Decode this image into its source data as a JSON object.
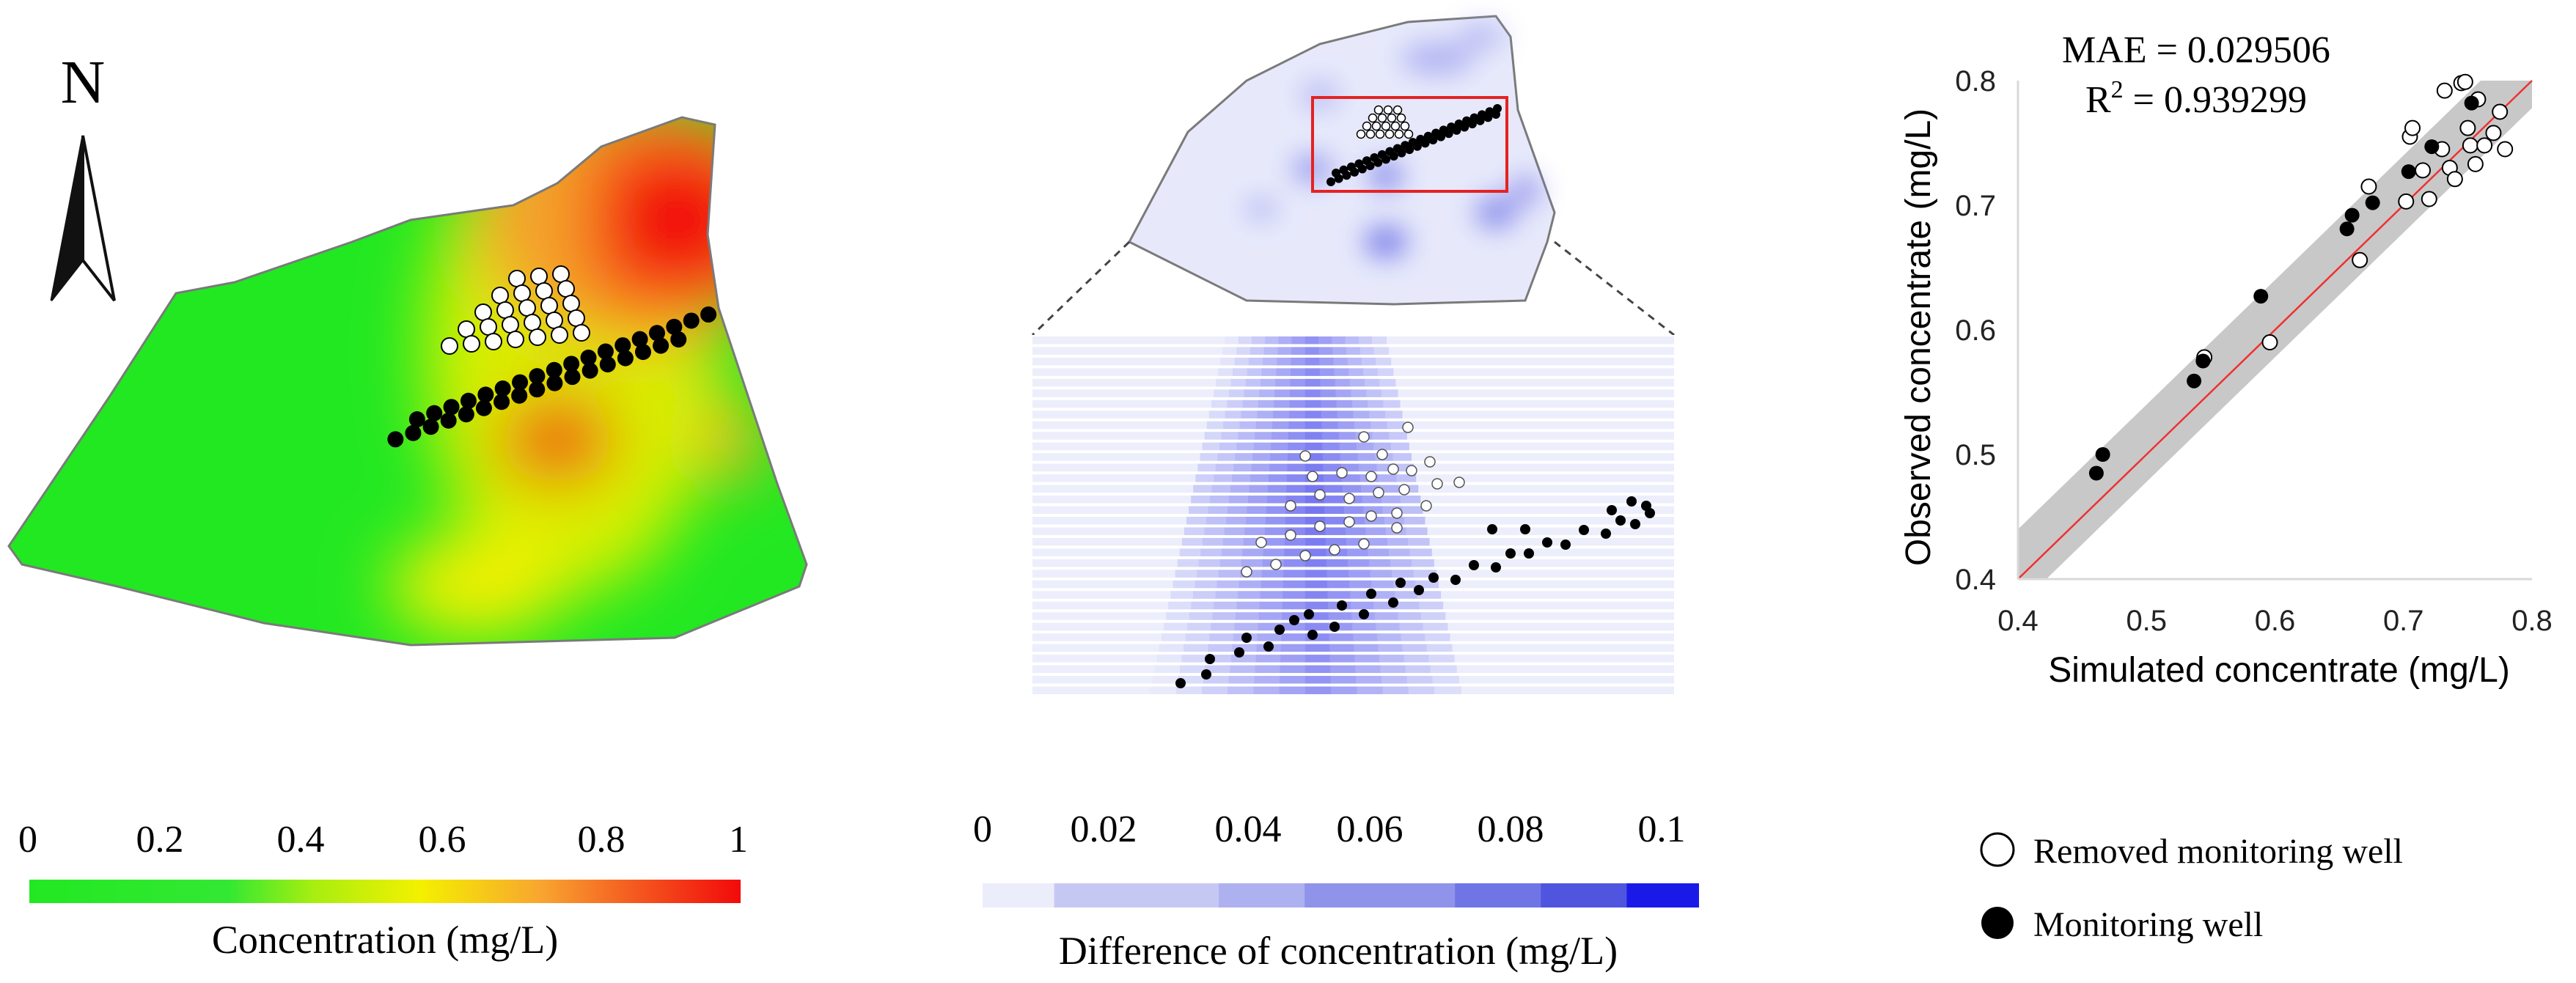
{
  "figure": {
    "north_label": "N",
    "colors": {
      "green": "#22e822",
      "yellow": "#f4f000",
      "orange": "#f89028",
      "red": "#f20a0a",
      "diff_light": "#e9ebfb",
      "diff_dark": "#1a1ae8",
      "box": "#e52222",
      "fit_line": "#f03030",
      "band": "#c8c8c8"
    }
  },
  "map_left": {
    "colorbar_ticks": [
      "0",
      "0.2",
      "0.4",
      "0.6",
      "0.8",
      "1"
    ],
    "colorbar_label": "Concentration (mg/L)"
  },
  "map_middle": {
    "colorbar_ticks": [
      "0",
      "0.02",
      "0.04",
      "0.06",
      "0.08",
      "0.1"
    ],
    "colorbar_label": "Difference of concentration (mg/L)"
  },
  "legend": {
    "removed_label": "Removed monitoring well",
    "monitoring_label": "Monitoring well"
  },
  "chart_data": {
    "type": "scatter",
    "title_mae": "MAE = 0.029506",
    "title_r2_prefix": "R",
    "title_r2_sup": "2",
    "title_r2_value": " = 0.939299",
    "xlabel": "Simulated concentrate (mg/L)",
    "ylabel": "Observed concentrate (mg/L)",
    "xlim": [
      0.4,
      0.8
    ],
    "ylim": [
      0.4,
      0.8
    ],
    "xticks": [
      "0.4",
      "0.5",
      "0.6",
      "0.7",
      "0.8"
    ],
    "yticks": [
      "0.4",
      "0.5",
      "0.6",
      "0.7",
      "0.8"
    ],
    "fit_line": [
      [
        0.4,
        0.4
      ],
      [
        0.8,
        0.8
      ]
    ],
    "series": [
      {
        "name": "Removed monitoring well",
        "marker": "open",
        "points": [
          [
            0.545,
            0.578
          ],
          [
            0.596,
            0.59
          ],
          [
            0.666,
            0.656
          ],
          [
            0.673,
            0.715
          ],
          [
            0.702,
            0.703
          ],
          [
            0.705,
            0.755
          ],
          [
            0.707,
            0.762
          ],
          [
            0.715,
            0.728
          ],
          [
            0.72,
            0.705
          ],
          [
            0.73,
            0.745
          ],
          [
            0.732,
            0.792
          ],
          [
            0.736,
            0.73
          ],
          [
            0.74,
            0.721
          ],
          [
            0.745,
            0.798
          ],
          [
            0.748,
            0.799
          ],
          [
            0.75,
            0.762
          ],
          [
            0.752,
            0.748
          ],
          [
            0.756,
            0.733
          ],
          [
            0.758,
            0.785
          ],
          [
            0.763,
            0.748
          ],
          [
            0.77,
            0.758
          ],
          [
            0.775,
            0.775
          ],
          [
            0.779,
            0.745
          ]
        ]
      },
      {
        "name": "Monitoring well",
        "marker": "filled",
        "points": [
          [
            0.461,
            0.485
          ],
          [
            0.466,
            0.5
          ],
          [
            0.537,
            0.559
          ],
          [
            0.544,
            0.575
          ],
          [
            0.589,
            0.627
          ],
          [
            0.656,
            0.681
          ],
          [
            0.66,
            0.692
          ],
          [
            0.676,
            0.702
          ],
          [
            0.704,
            0.727
          ],
          [
            0.722,
            0.747
          ],
          [
            0.753,
            0.782
          ]
        ]
      }
    ]
  }
}
